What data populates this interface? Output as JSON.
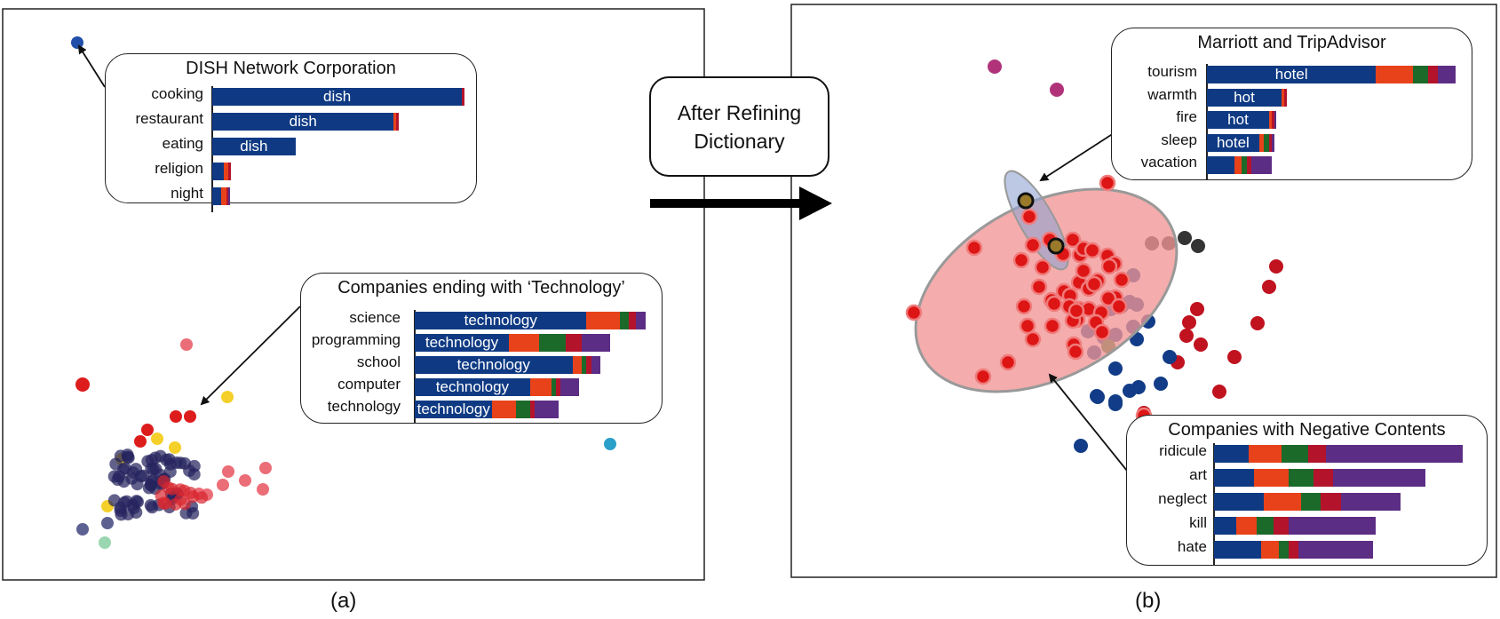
{
  "colors": {
    "topic_blue": "#0f3a83",
    "topic_orange": "#e8421a",
    "topic_green": "#1c6a2a",
    "topic_red": "#b3142b",
    "topic_purple": "#5c2d84",
    "highlight_red": "#f4a3a3",
    "highlight_blue": "#9fb0d8",
    "arrow": "#111111"
  },
  "arrow_label": {
    "line1": "After Refining",
    "line2": "Dictionary"
  },
  "captions": {
    "a": "(a)",
    "b": "(b)"
  },
  "callouts": [
    {
      "id": "dish",
      "title": "DISH Network Corporation",
      "rows": [
        {
          "label": "cooking",
          "text": "dish",
          "segments": [
            0.99,
            0.0,
            0.0,
            0.01,
            0.0
          ]
        },
        {
          "label": "restaurant",
          "text": "dish",
          "segments": [
            0.72,
            0.01,
            0.0,
            0.01,
            0.0
          ]
        },
        {
          "label": "eating",
          "text": "dish",
          "segments": [
            0.33,
            0.0,
            0.0,
            0.0,
            0.0
          ]
        },
        {
          "label": "religion",
          "text": "",
          "segments": [
            0.045,
            0.02,
            0.0,
            0.01,
            0.0
          ]
        },
        {
          "label": "night",
          "text": "",
          "segments": [
            0.035,
            0.02,
            0.0,
            0.01,
            0.005
          ]
        }
      ]
    },
    {
      "id": "technology",
      "title": "Companies ending with ‘Technology’",
      "rows": [
        {
          "label": "science",
          "text": "technology",
          "segments": [
            0.73,
            0.14,
            0.04,
            0.03,
            0.04
          ]
        },
        {
          "label": "programming",
          "text": "technology",
          "segments": [
            0.4,
            0.13,
            0.11,
            0.07,
            0.12
          ]
        },
        {
          "label": "school",
          "text": "technology",
          "segments": [
            0.67,
            0.04,
            0.02,
            0.02,
            0.04
          ]
        },
        {
          "label": "computer",
          "text": "technology",
          "segments": [
            0.49,
            0.09,
            0.02,
            0.02,
            0.08
          ]
        },
        {
          "label": "technology",
          "text": "technology",
          "segments": [
            0.33,
            0.1,
            0.06,
            0.02,
            0.1
          ]
        }
      ]
    },
    {
      "id": "marriott",
      "title": "Marriott and TripAdvisor",
      "rows": [
        {
          "label": "tourism",
          "text": "hotel",
          "segments": [
            0.68,
            0.15,
            0.06,
            0.04,
            0.07
          ]
        },
        {
          "label": "warmth",
          "text": "hot",
          "segments": [
            0.3,
            0.01,
            0.0,
            0.01,
            0.0
          ]
        },
        {
          "label": "fire",
          "text": "hot",
          "segments": [
            0.25,
            0.01,
            0.0,
            0.01,
            0.01
          ]
        },
        {
          "label": "sleep",
          "text": "hotel",
          "segments": [
            0.21,
            0.02,
            0.02,
            0.01,
            0.01
          ]
        },
        {
          "label": "vacation",
          "text": "",
          "segments": [
            0.11,
            0.03,
            0.02,
            0.02,
            0.08
          ]
        }
      ]
    },
    {
      "id": "negative",
      "title": "Companies with Negative Contents",
      "rows": [
        {
          "label": "ridicule",
          "text": "",
          "segments": [
            0.14,
            0.13,
            0.11,
            0.07,
            0.55
          ]
        },
        {
          "label": "art",
          "text": "",
          "segments": [
            0.16,
            0.14,
            0.1,
            0.08,
            0.37
          ]
        },
        {
          "label": "neglect",
          "text": "",
          "segments": [
            0.2,
            0.15,
            0.08,
            0.08,
            0.24
          ]
        },
        {
          "label": "kill",
          "text": "",
          "segments": [
            0.09,
            0.08,
            0.07,
            0.06,
            0.35
          ]
        },
        {
          "label": "hate",
          "text": "",
          "segments": [
            0.19,
            0.07,
            0.04,
            0.04,
            0.3
          ]
        }
      ]
    }
  ]
}
